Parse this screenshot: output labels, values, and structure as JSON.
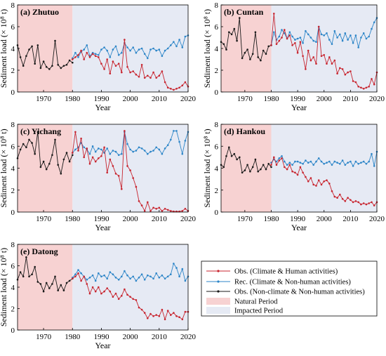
{
  "colors": {
    "obs_human": "#c8252f",
    "rec_nonhuman": "#2e86c8",
    "obs_nonclimate": "#1a1a1a",
    "natural_period": "#f7d2d2",
    "impacted_period": "#e6eaf4"
  },
  "legend": {
    "items": [
      {
        "key": "obs_human",
        "label": "Obs. (Climate & Human activities)"
      },
      {
        "key": "rec_nonhuman",
        "label": "Rec. (Climate & Non-human activities)"
      },
      {
        "key": "obs_nonclimate",
        "label": "Obs. (Non-climate & Non-human activities)"
      },
      {
        "key": "natural_period",
        "label": "Natural Period"
      },
      {
        "key": "impacted_period",
        "label": "Impacted Period"
      }
    ]
  },
  "chart_data": [
    {
      "type": "line",
      "title": "(a) Zhutuo",
      "xlabel": "Year",
      "ylabel": "Sediment load (× 10⁸ t)",
      "xlim": [
        1961,
        2020
      ],
      "ylim": [
        0,
        8
      ],
      "xticks": [
        1970,
        1980,
        1990,
        2000,
        2010,
        2020
      ],
      "yticks": [
        0,
        2,
        4,
        6,
        8
      ],
      "periods": {
        "natural": [
          1961,
          1980
        ],
        "impacted": [
          1980,
          2020
        ]
      },
      "series": [
        {
          "key": "obs_nonclimate",
          "x_start": 1961,
          "values": [
            4.3,
            3.2,
            2.4,
            3.3,
            3.9,
            4.2,
            2.6,
            4.3,
            2.2,
            2.8,
            2.3,
            2.1,
            2.4,
            4.7,
            2.5,
            2.2,
            2.4,
            2.5,
            2.9,
            2.7
          ]
        },
        {
          "key": "rec_nonhuman",
          "x_start": 1980,
          "values": [
            3.1,
            3.6,
            3.2,
            3.7,
            3.9,
            4.3,
            3.3,
            3.6,
            3.5,
            3.4,
            3.9,
            4.1,
            3.8,
            3.2,
            3.9,
            4.2,
            3.4,
            3.6,
            4.5,
            4.1,
            3.8,
            4.1,
            3.6,
            3.9,
            4.0,
            3.5,
            3.1,
            3.9,
            4.0,
            3.8,
            3.9,
            3.3,
            3.8,
            4.0,
            4.3,
            4.6,
            4.2,
            4.8,
            4.1,
            5.1,
            5.2
          ]
        },
        {
          "key": "obs_human",
          "x_start": 1980,
          "values": [
            3.0,
            3.2,
            3.4,
            3.8,
            3.0,
            3.6,
            3.2,
            3.5,
            3.3,
            3.2,
            2.6,
            2.1,
            3.0,
            1.7,
            2.8,
            2.4,
            2.6,
            1.8,
            4.8,
            2.3,
            1.8,
            1.9,
            1.6,
            1.4,
            2.5,
            1.3,
            1.5,
            1.3,
            1.8,
            1.3,
            1.5,
            1.9,
            0.9,
            0.4,
            0.3,
            0.2,
            0.3,
            0.4,
            0.6,
            0.9,
            0.5
          ]
        }
      ]
    },
    {
      "type": "line",
      "title": "(b) Cuntan",
      "xlabel": "Year",
      "ylabel": "Sediment load (× 10⁸ t)",
      "xlim": [
        1961,
        2020
      ],
      "ylim": [
        0,
        8
      ],
      "xticks": [
        1970,
        1980,
        1990,
        2000,
        2010,
        2020
      ],
      "yticks": [
        0,
        2,
        4,
        6,
        8
      ],
      "periods": {
        "natural": [
          1961,
          1980
        ],
        "impacted": [
          1980,
          2020
        ]
      },
      "series": [
        {
          "key": "obs_nonclimate",
          "x_start": 1961,
          "values": [
            4.6,
            4.4,
            3.9,
            5.5,
            5.3,
            5.8,
            4.7,
            6.8,
            3.1,
            3.6,
            3.9,
            3.0,
            3.5,
            5.5,
            3.2,
            2.9,
            3.8,
            3.5,
            4.2,
            4.3
          ]
        },
        {
          "key": "rec_nonhuman",
          "x_start": 1980,
          "values": [
            4.3,
            5.5,
            4.8,
            5.1,
            5.7,
            5.4,
            4.9,
            5.5,
            5.1,
            4.8,
            4.9,
            5.0,
            4.5,
            5.6,
            5.3,
            5.0,
            4.7,
            4.6,
            6.0,
            5.3,
            5.2,
            5.4,
            4.8,
            4.4,
            5.6,
            5.0,
            5.3,
            4.7,
            5.4,
            4.8,
            5.2,
            4.5,
            5.2,
            4.1,
            5.0,
            5.4,
            4.9,
            5.1,
            5.8,
            6.4,
            6.8
          ]
        },
        {
          "key": "obs_human",
          "x_start": 1980,
          "values": [
            4.3,
            7.2,
            4.4,
            4.7,
            5.0,
            5.7,
            4.9,
            5.2,
            4.3,
            4.5,
            3.6,
            4.6,
            3.3,
            2.1,
            3.8,
            2.9,
            3.2,
            2.6,
            6.0,
            3.3,
            3.4,
            2.6,
            3.2,
            2.6,
            2.9,
            1.7,
            2.2,
            2.1,
            1.6,
            1.8,
            1.9,
            1.0,
            0.9,
            0.5,
            0.4,
            0.3,
            0.4,
            0.5,
            1.2,
            0.7,
            1.8
          ]
        }
      ]
    },
    {
      "type": "line",
      "title": "(c) Yichang",
      "xlabel": "Year",
      "ylabel": "Sediment load (× 10⁸ t)",
      "xlim": [
        1961,
        2020
      ],
      "ylim": [
        0,
        8
      ],
      "xticks": [
        1970,
        1980,
        1990,
        2000,
        2010,
        2020
      ],
      "yticks": [
        0,
        2,
        4,
        6,
        8
      ],
      "periods": {
        "natural": [
          1961,
          1980
        ],
        "impacted": [
          1980,
          2020
        ]
      },
      "series": [
        {
          "key": "obs_nonclimate",
          "x_start": 1961,
          "values": [
            4.9,
            5.7,
            6.2,
            5.9,
            6.6,
            6.3,
            5.3,
            7.3,
            4.1,
            4.6,
            3.9,
            4.4,
            5.2,
            6.6,
            4.3,
            3.5,
            4.8,
            5.4,
            4.6,
            5.2
          ]
        },
        {
          "key": "rec_nonhuman",
          "x_start": 1980,
          "values": [
            5.4,
            5.7,
            5.9,
            6.3,
            5.9,
            5.7,
            5.3,
            6.0,
            5.5,
            5.8,
            5.7,
            5.4,
            5.8,
            5.3,
            5.6,
            5.5,
            5.2,
            5.3,
            7.3,
            6.2,
            5.7,
            5.5,
            5.6,
            5.9,
            5.8,
            5.6,
            5.3,
            5.5,
            5.6,
            5.9,
            5.7,
            5.3,
            5.8,
            6.1,
            6.6,
            7.4,
            7.4,
            6.4,
            5.3,
            6.5,
            7.3
          ]
        },
        {
          "key": "obs_human",
          "x_start": 1980,
          "values": [
            5.4,
            7.3,
            5.6,
            6.7,
            5.0,
            5.8,
            4.4,
            5.0,
            4.6,
            4.9,
            5.1,
            5.9,
            3.6,
            4.8,
            4.2,
            3.5,
            3.3,
            2.1,
            7.4,
            4.2,
            3.8,
            3.1,
            2.3,
            1.0,
            0.6,
            0.1,
            0.9,
            0.1,
            0.4,
            0.3,
            0.4,
            0.1,
            0.3,
            0.2,
            0.1,
            0.05,
            0.05,
            0.05,
            0.1,
            0.3,
            0.1
          ]
        }
      ]
    },
    {
      "type": "line",
      "title": "(d) Hankou",
      "xlabel": "Year",
      "ylabel": "Sediment load (× 10⁸ t)",
      "xlim": [
        1961,
        2020
      ],
      "ylim": [
        0,
        8
      ],
      "xticks": [
        1970,
        1980,
        1990,
        2000,
        2010,
        2020
      ],
      "yticks": [
        0,
        2,
        4,
        6,
        8
      ],
      "periods": {
        "natural": [
          1961,
          1980
        ],
        "impacted": [
          1980,
          2020
        ]
      },
      "series": [
        {
          "key": "obs_nonclimate",
          "x_start": 1961,
          "values": [
            4.3,
            4.1,
            5.1,
            5.9,
            5.1,
            5.3,
            4.8,
            5.0,
            3.6,
            3.8,
            4.3,
            3.7,
            4.1,
            4.8,
            3.7,
            3.9,
            4.3,
            3.9,
            4.4,
            4.1
          ]
        },
        {
          "key": "rec_nonhuman",
          "x_start": 1980,
          "values": [
            4.5,
            4.8,
            4.6,
            4.9,
            5.1,
            4.6,
            4.3,
            4.5,
            4.3,
            4.6,
            4.6,
            4.5,
            4.4,
            4.7,
            4.5,
            4.6,
            4.3,
            4.6,
            4.9,
            4.6,
            4.4,
            4.5,
            4.6,
            4.3,
            4.6,
            4.5,
            4.4,
            4.7,
            4.3,
            4.5,
            4.6,
            4.2,
            4.6,
            4.4,
            4.5,
            4.6,
            4.4,
            4.6,
            5.3,
            4.2,
            5.5
          ]
        },
        {
          "key": "obs_human",
          "x_start": 1980,
          "values": [
            4.3,
            5.0,
            4.3,
            4.7,
            4.9,
            4.1,
            3.9,
            4.3,
            3.7,
            3.6,
            3.4,
            4.1,
            3.6,
            3.2,
            2.8,
            3.1,
            2.5,
            2.4,
            2.9,
            2.5,
            2.8,
            2.9,
            2.6,
            1.9,
            1.4,
            1.3,
            1.6,
            1.2,
            1.0,
            1.3,
            1.1,
            0.9,
            1.0,
            0.9,
            0.7,
            0.8,
            0.7,
            0.8,
            0.9,
            0.6,
            0.9
          ]
        }
      ]
    },
    {
      "type": "line",
      "title": "(e) Datong",
      "xlabel": "Year",
      "ylabel": "Sediment load (× 10⁸ t)",
      "xlim": [
        1961,
        2020
      ],
      "ylim": [
        0,
        8
      ],
      "xticks": [
        1970,
        1980,
        1990,
        2000,
        2010,
        2020
      ],
      "yticks": [
        0,
        2,
        4,
        6,
        8
      ],
      "periods": {
        "natural": [
          1961,
          1980
        ],
        "impacted": [
          1980,
          2020
        ]
      },
      "series": [
        {
          "key": "obs_nonclimate",
          "x_start": 1961,
          "values": [
            4.7,
            5.4,
            5.0,
            6.8,
            5.0,
            5.2,
            5.9,
            4.5,
            4.3,
            3.6,
            4.4,
            3.9,
            4.3,
            5.0,
            3.7,
            4.2,
            3.7,
            4.4,
            4.6,
            4.8
          ]
        },
        {
          "key": "rec_nonhuman",
          "x_start": 1980,
          "values": [
            4.9,
            5.2,
            5.6,
            5.3,
            5.0,
            4.7,
            4.9,
            5.1,
            4.6,
            5.3,
            5.0,
            5.1,
            4.8,
            5.4,
            5.2,
            4.9,
            4.7,
            5.0,
            5.5,
            5.1,
            4.8,
            5.0,
            4.6,
            4.9,
            5.2,
            4.7,
            5.1,
            5.0,
            4.8,
            5.3,
            4.9,
            5.1,
            4.8,
            5.0,
            5.2,
            6.2,
            5.8,
            5.0,
            5.7,
            4.6,
            5.0
          ]
        },
        {
          "key": "obs_human",
          "x_start": 1980,
          "values": [
            4.8,
            5.0,
            5.3,
            4.6,
            5.0,
            4.3,
            3.4,
            4.0,
            3.6,
            4.0,
            3.4,
            3.6,
            3.9,
            3.6,
            3.1,
            3.4,
            2.9,
            3.2,
            3.8,
            3.3,
            3.1,
            2.9,
            2.8,
            2.1,
            1.9,
            1.6,
            1.1,
            1.5,
            1.3,
            1.4,
            1.3,
            1.9,
            1.0,
            1.8,
            1.4,
            1.6,
            1.3,
            1.2,
            1.0,
            1.7,
            1.7
          ]
        }
      ]
    }
  ]
}
